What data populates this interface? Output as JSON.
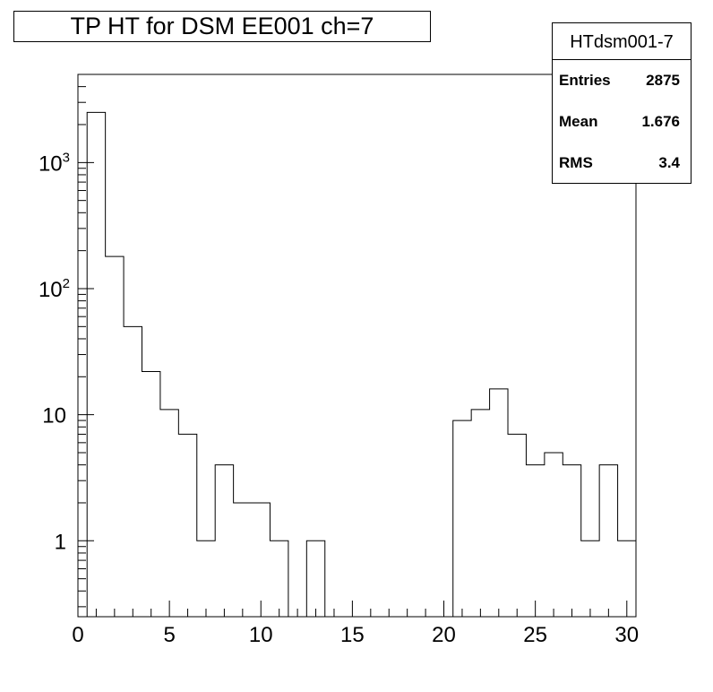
{
  "chart_data": {
    "type": "bar",
    "title": "TP HT for DSM EE001 ch=7",
    "xlabel": "",
    "ylabel": "",
    "xlim": [
      0,
      30.5
    ],
    "ylim": [
      0.25,
      5000
    ],
    "yscale": "log",
    "bin_edges_start": -0.5,
    "bin_width": 1,
    "x_ticks": [
      "0",
      "5",
      "10",
      "15",
      "20",
      "25",
      "30"
    ],
    "y_ticks": [
      {
        "value": 1,
        "label": "1",
        "exp": ""
      },
      {
        "value": 10,
        "label": "10",
        "exp": ""
      },
      {
        "value": 100,
        "label": "10",
        "exp": "2"
      },
      {
        "value": 1000,
        "label": "10",
        "exp": "3"
      }
    ],
    "values": [
      0,
      2500,
      180,
      50,
      22,
      11,
      7,
      1,
      4,
      2,
      2,
      1,
      0,
      1,
      0,
      0,
      0,
      0,
      0,
      0,
      0,
      9,
      11,
      16,
      7,
      4,
      5,
      4,
      1,
      4,
      1
    ]
  },
  "stats": {
    "name": "HTdsm001-7",
    "rows": [
      {
        "label": "Entries",
        "value": "2875"
      },
      {
        "label": "Mean",
        "value": "1.676"
      },
      {
        "label": "RMS",
        "value": "3.4"
      }
    ]
  }
}
